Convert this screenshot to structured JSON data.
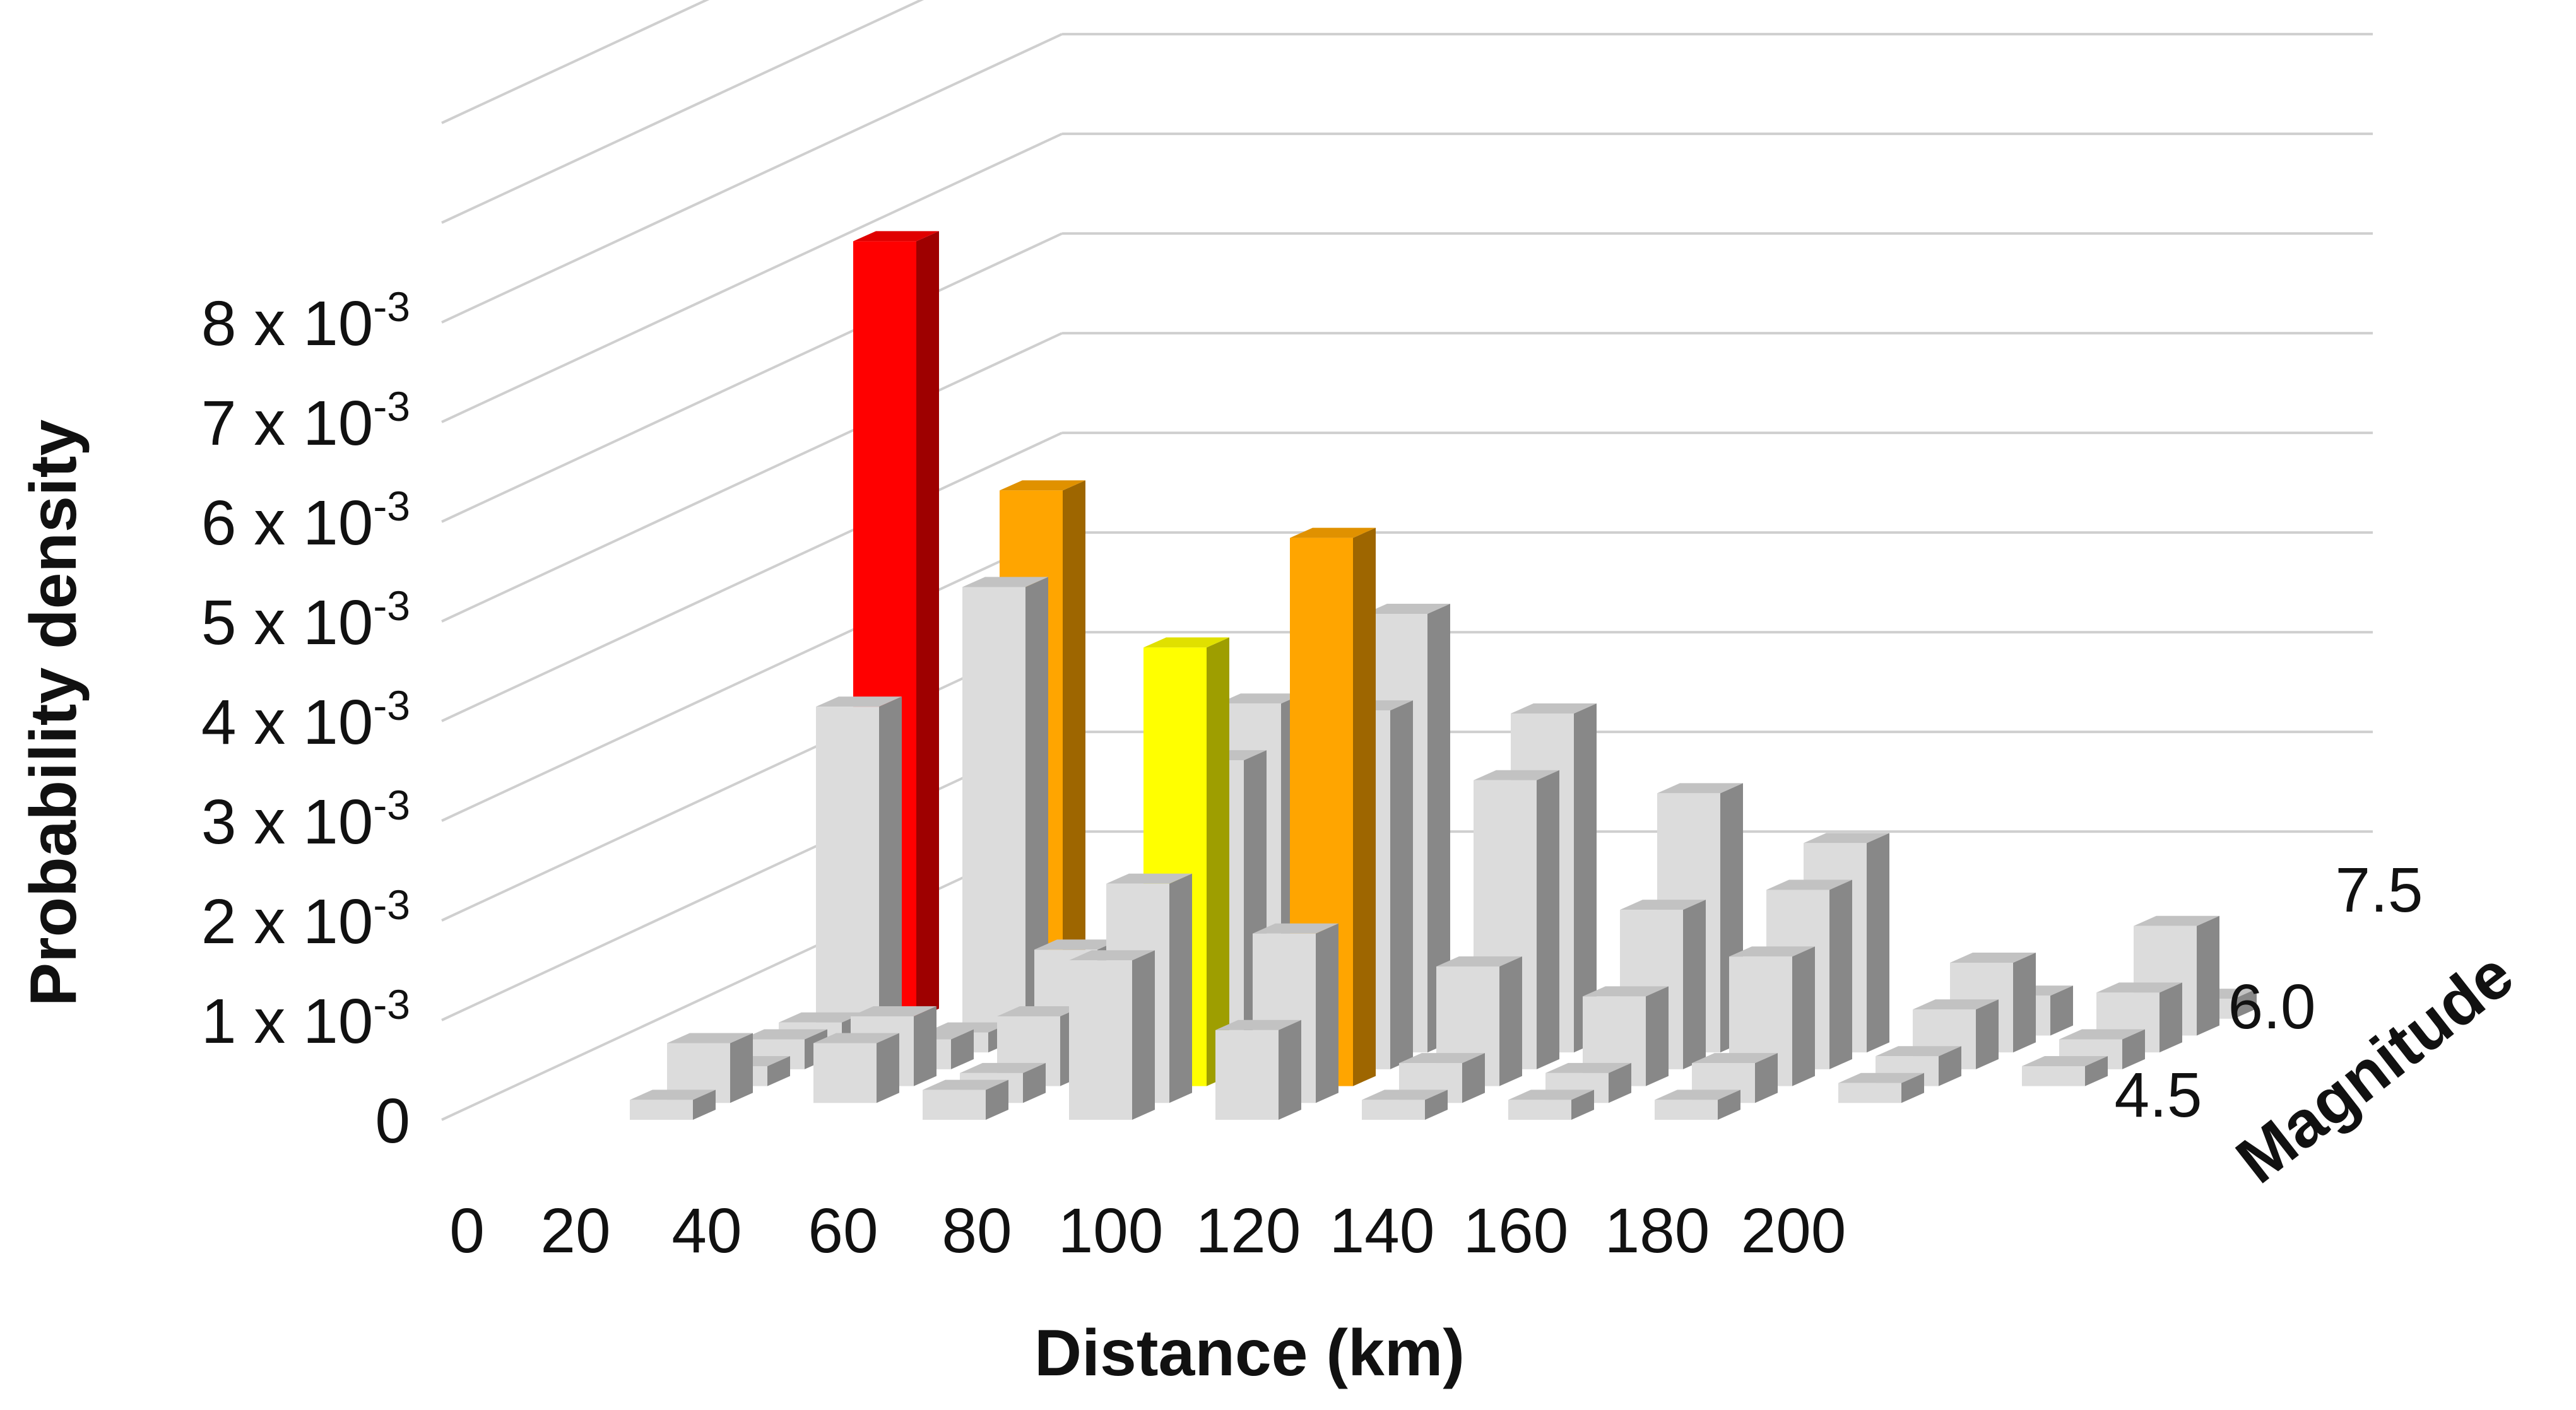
{
  "chart_data": {
    "type": "bar3d",
    "title": "",
    "xlabel": "Distance (km)",
    "ylabel": "Probability density",
    "zlabel": "Magnitude",
    "y_ticks": [
      "0",
      "1 x 10-3",
      "2 x 10-3",
      "3 x 10-3",
      "4 x 10-3",
      "5 x 10-3",
      "6 x 10-3",
      "7 x 10-3",
      "8 x 10-3"
    ],
    "y_tick_parts": [
      {
        "mant": "0",
        "exp": ""
      },
      {
        "mant": "1 x 10",
        "exp": "-3"
      },
      {
        "mant": "2 x 10",
        "exp": "-3"
      },
      {
        "mant": "3 x 10",
        "exp": "-3"
      },
      {
        "mant": "4 x 10",
        "exp": "-3"
      },
      {
        "mant": "5 x 10",
        "exp": "-3"
      },
      {
        "mant": "6 x 10",
        "exp": "-3"
      },
      {
        "mant": "7 x 10",
        "exp": "-3"
      },
      {
        "mant": "8 x 10",
        "exp": "-3"
      }
    ],
    "x_ticks": [
      "0",
      "20",
      "40",
      "60",
      "80",
      "100",
      "120",
      "140",
      "160",
      "180",
      "200"
    ],
    "z_ticks": [
      "4.5",
      "6.0",
      "7.5"
    ],
    "ylim": [
      0,
      0.01
    ],
    "grid": true,
    "colors": {
      "default": "#dcdcdc",
      "red": "#ff0000",
      "orange": "#ffa500",
      "yellow": "#ffff00"
    },
    "distance_bins": [
      10,
      30,
      50,
      70,
      90,
      110,
      130,
      150,
      170,
      190,
      210
    ],
    "magnitude_rows": [
      4.5,
      5.0,
      5.5,
      6.0,
      6.5,
      7.0,
      7.5
    ],
    "bars": [
      {
        "distance": 30,
        "magnitude": 4.5,
        "value": 0.0002,
        "color": "default"
      },
      {
        "distance": 30,
        "magnitude": 5.0,
        "value": 0.0006,
        "color": "default"
      },
      {
        "distance": 30,
        "magnitude": 5.5,
        "value": 0.0002,
        "color": "default"
      },
      {
        "distance": 30,
        "magnitude": 6.0,
        "value": 0.0003,
        "color": "default"
      },
      {
        "distance": 30,
        "magnitude": 6.5,
        "value": 0.0003,
        "color": "default"
      },
      {
        "distance": 30,
        "magnitude": 7.0,
        "value": 0.0033,
        "color": "default"
      },
      {
        "distance": 30,
        "magnitude": 7.5,
        "value": 0.0078,
        "color": "red"
      },
      {
        "distance": 50,
        "magnitude": 7.5,
        "value": 0.0053,
        "color": "orange"
      },
      {
        "distance": 50,
        "magnitude": 7.0,
        "value": 0.0045,
        "color": "default"
      },
      {
        "distance": 50,
        "magnitude": 6.5,
        "value": 0.0002,
        "color": "default"
      },
      {
        "distance": 50,
        "magnitude": 6.0,
        "value": 0.0003,
        "color": "default"
      },
      {
        "distance": 50,
        "magnitude": 5.5,
        "value": 0.0007,
        "color": "default"
      },
      {
        "distance": 50,
        "magnitude": 5.0,
        "value": 0.0006,
        "color": "default"
      },
      {
        "distance": 70,
        "magnitude": 4.5,
        "value": 0.0003,
        "color": "default"
      },
      {
        "distance": 70,
        "magnitude": 5.0,
        "value": 0.0003,
        "color": "default"
      },
      {
        "distance": 70,
        "magnitude": 5.5,
        "value": 0.0007,
        "color": "default"
      },
      {
        "distance": 70,
        "magnitude": 6.0,
        "value": 0.0012,
        "color": "default"
      },
      {
        "distance": 70,
        "magnitude": 6.5,
        "value": 0.0003,
        "color": "default"
      },
      {
        "distance": 90,
        "magnitude": 4.5,
        "value": 0.0016,
        "color": "default"
      },
      {
        "distance": 90,
        "magnitude": 5.0,
        "value": 0.0022,
        "color": "default"
      },
      {
        "distance": 90,
        "magnitude": 5.5,
        "value": 0.0044,
        "color": "yellow"
      },
      {
        "distance": 90,
        "magnitude": 6.0,
        "value": 0.0031,
        "color": "default"
      },
      {
        "distance": 90,
        "magnitude": 6.5,
        "value": 0.0035,
        "color": "default"
      },
      {
        "distance": 110,
        "magnitude": 4.5,
        "value": 0.0009,
        "color": "default"
      },
      {
        "distance": 110,
        "magnitude": 5.0,
        "value": 0.0017,
        "color": "default"
      },
      {
        "distance": 110,
        "magnitude": 5.5,
        "value": 0.0055,
        "color": "orange"
      },
      {
        "distance": 110,
        "magnitude": 6.0,
        "value": 0.0036,
        "color": "default"
      },
      {
        "distance": 110,
        "magnitude": 6.5,
        "value": 0.0044,
        "color": "default"
      },
      {
        "distance": 130,
        "magnitude": 4.5,
        "value": 0.0002,
        "color": "default"
      },
      {
        "distance": 130,
        "magnitude": 5.0,
        "value": 0.0004,
        "color": "default"
      },
      {
        "distance": 130,
        "magnitude": 5.5,
        "value": 0.0012,
        "color": "default"
      },
      {
        "distance": 130,
        "magnitude": 6.0,
        "value": 0.0029,
        "color": "default"
      },
      {
        "distance": 130,
        "magnitude": 6.5,
        "value": 0.0034,
        "color": "default"
      },
      {
        "distance": 150,
        "magnitude": 4.5,
        "value": 0.0002,
        "color": "default"
      },
      {
        "distance": 150,
        "magnitude": 5.0,
        "value": 0.0003,
        "color": "default"
      },
      {
        "distance": 150,
        "magnitude": 5.5,
        "value": 0.0009,
        "color": "default"
      },
      {
        "distance": 150,
        "magnitude": 6.0,
        "value": 0.0016,
        "color": "default"
      },
      {
        "distance": 150,
        "magnitude": 6.5,
        "value": 0.0026,
        "color": "default"
      },
      {
        "distance": 170,
        "magnitude": 4.5,
        "value": 0.0002,
        "color": "default"
      },
      {
        "distance": 170,
        "magnitude": 5.0,
        "value": 0.0004,
        "color": "default"
      },
      {
        "distance": 170,
        "magnitude": 5.5,
        "value": 0.0013,
        "color": "default"
      },
      {
        "distance": 170,
        "magnitude": 6.0,
        "value": 0.0018,
        "color": "default"
      },
      {
        "distance": 170,
        "magnitude": 6.5,
        "value": 0.0021,
        "color": "default"
      },
      {
        "distance": 190,
        "magnitude": 5.0,
        "value": 0.0002,
        "color": "default"
      },
      {
        "distance": 190,
        "magnitude": 5.5,
        "value": 0.0003,
        "color": "default"
      },
      {
        "distance": 190,
        "magnitude": 6.0,
        "value": 0.0006,
        "color": "default"
      },
      {
        "distance": 190,
        "magnitude": 6.5,
        "value": 0.0009,
        "color": "default"
      },
      {
        "distance": 190,
        "magnitude": 7.0,
        "value": 0.0004,
        "color": "default"
      },
      {
        "distance": 210,
        "magnitude": 5.5,
        "value": 0.0002,
        "color": "default"
      },
      {
        "distance": 210,
        "magnitude": 6.0,
        "value": 0.0003,
        "color": "default"
      },
      {
        "distance": 210,
        "magnitude": 6.5,
        "value": 0.0006,
        "color": "default"
      },
      {
        "distance": 210,
        "magnitude": 7.0,
        "value": 0.0011,
        "color": "default"
      },
      {
        "distance": 210,
        "magnitude": 7.5,
        "value": 0.0002,
        "color": "default"
      }
    ]
  }
}
